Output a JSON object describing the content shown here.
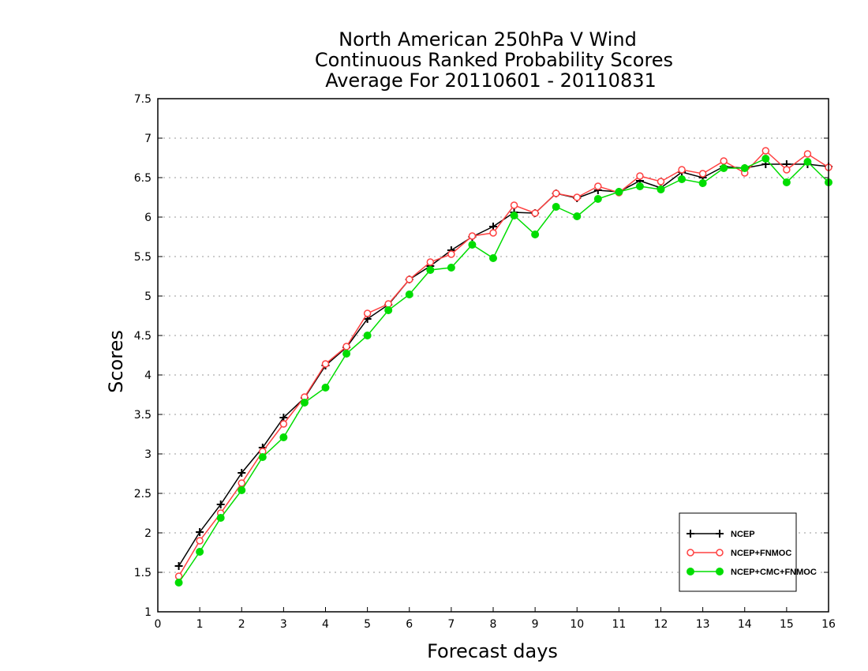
{
  "chart_data": {
    "type": "line",
    "title": [
      "North American 250hPa V Wind",
      "Continuous Ranked Probability Scores",
      "Average For 20110601 - 20110831"
    ],
    "xlabel": "Forecast days",
    "ylabel": "Scores",
    "xlim": [
      0,
      16
    ],
    "ylim": [
      1,
      7.5
    ],
    "x_ticks": [
      0,
      1,
      2,
      3,
      4,
      5,
      6,
      7,
      8,
      9,
      10,
      11,
      12,
      13,
      14,
      15,
      16
    ],
    "y_ticks": [
      1,
      1.5,
      2,
      2.5,
      3,
      3.5,
      4,
      4.5,
      5,
      5.5,
      6,
      6.5,
      7,
      7.5
    ],
    "y_tick_labels": [
      "1",
      "1.5",
      "2",
      "2.5",
      "3",
      "3.5",
      "4",
      "4.5",
      "5",
      "5.5",
      "6",
      "6.5",
      "7",
      "7.5"
    ],
    "grid": "horizontal-dotted",
    "legend_position": "bottom-right",
    "x": [
      0.5,
      1,
      1.5,
      2,
      2.5,
      3,
      3.5,
      4,
      4.5,
      5,
      5.5,
      6,
      6.5,
      7,
      7.5,
      8,
      8.5,
      9,
      9.5,
      10,
      10.5,
      11,
      11.5,
      12,
      12.5,
      13,
      13.5,
      14,
      14.5,
      15,
      15.5,
      16
    ],
    "series": [
      {
        "name": "NCEP",
        "color": "#000000",
        "marker": "plus",
        "values": [
          1.58,
          2.01,
          2.36,
          2.76,
          3.08,
          3.46,
          3.71,
          4.12,
          4.35,
          4.71,
          4.89,
          5.21,
          5.38,
          5.58,
          5.75,
          5.88,
          6.06,
          6.05,
          6.3,
          6.24,
          6.34,
          6.32,
          6.46,
          6.37,
          6.57,
          6.5,
          6.64,
          6.62,
          6.67,
          6.67,
          6.67,
          6.64
        ]
      },
      {
        "name": "NCEP+FNMOC",
        "color": "#ff4040",
        "marker": "open-circle",
        "values": [
          1.45,
          1.9,
          2.25,
          2.63,
          3.03,
          3.38,
          3.72,
          4.14,
          4.36,
          4.78,
          4.9,
          5.21,
          5.43,
          5.53,
          5.76,
          5.8,
          6.15,
          6.05,
          6.3,
          6.25,
          6.39,
          6.31,
          6.52,
          6.45,
          6.6,
          6.55,
          6.71,
          6.56,
          6.84,
          6.6,
          6.8,
          6.63
        ]
      },
      {
        "name": "NCEP+CMC+FNMOC",
        "color": "#00dd00",
        "marker": "filled-circle",
        "values": [
          1.37,
          1.76,
          2.19,
          2.54,
          2.96,
          3.21,
          3.65,
          3.84,
          4.27,
          4.5,
          4.82,
          5.02,
          5.33,
          5.36,
          5.65,
          5.48,
          6.02,
          5.78,
          6.13,
          6.01,
          6.23,
          6.32,
          6.39,
          6.35,
          6.48,
          6.43,
          6.62,
          6.62,
          6.74,
          6.44,
          6.7,
          6.44
        ]
      }
    ]
  }
}
